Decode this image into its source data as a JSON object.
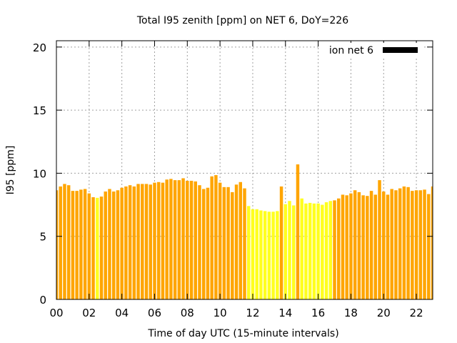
{
  "chart_data": {
    "type": "bar",
    "title": "Total I95 zenith [ppm] on NET 6, DoY=226",
    "xlabel": "Time of day UTC (15-minute intervals)",
    "ylabel": "I95 [ppm]",
    "xlim": [
      0,
      23
    ],
    "ylim": [
      0,
      20.5
    ],
    "x_ticks": [
      "00",
      "02",
      "04",
      "06",
      "08",
      "10",
      "12",
      "14",
      "16",
      "18",
      "20",
      "22"
    ],
    "y_ticks": [
      "0",
      "5",
      "10",
      "15",
      "20"
    ],
    "grid": true,
    "legend": {
      "label": "ion net 6",
      "color": "#000000",
      "position": "top-right"
    },
    "colors": {
      "orange": "#FFA500",
      "yellow": "#FFFF1F"
    },
    "interval_hours": 0.25,
    "values": [
      8.65,
      8.95,
      9.15,
      9.05,
      8.6,
      8.6,
      8.7,
      8.75,
      8.4,
      8.1,
      8.05,
      8.15,
      8.55,
      8.75,
      8.55,
      8.65,
      8.85,
      8.95,
      9.05,
      8.95,
      9.15,
      9.15,
      9.15,
      9.1,
      9.25,
      9.3,
      9.25,
      9.5,
      9.55,
      9.45,
      9.45,
      9.6,
      9.4,
      9.4,
      9.35,
      9.05,
      8.75,
      8.85,
      9.75,
      9.85,
      9.25,
      8.9,
      8.9,
      8.5,
      9.1,
      9.3,
      8.8,
      7.4,
      7.15,
      7.15,
      7.05,
      7.0,
      6.95,
      6.95,
      7.0,
      8.95,
      7.55,
      7.8,
      7.45,
      10.7,
      8.0,
      7.6,
      7.65,
      7.6,
      7.6,
      7.5,
      7.7,
      7.8,
      7.85,
      8.0,
      8.3,
      8.25,
      8.4,
      8.65,
      8.5,
      8.25,
      8.2,
      8.6,
      8.3,
      9.45,
      8.55,
      8.3,
      8.75,
      8.65,
      8.8,
      8.95,
      8.9,
      8.6,
      8.65,
      8.65,
      8.7,
      8.35,
      8.95
    ],
    "bar_colors": [
      "orange",
      "orange",
      "orange",
      "orange",
      "orange",
      "orange",
      "orange",
      "orange",
      "orange",
      "orange",
      "yellow",
      "orange",
      "orange",
      "orange",
      "orange",
      "orange",
      "orange",
      "orange",
      "orange",
      "orange",
      "orange",
      "orange",
      "orange",
      "orange",
      "orange",
      "orange",
      "orange",
      "orange",
      "orange",
      "orange",
      "orange",
      "orange",
      "orange",
      "orange",
      "orange",
      "orange",
      "orange",
      "orange",
      "orange",
      "orange",
      "orange",
      "orange",
      "orange",
      "orange",
      "orange",
      "orange",
      "orange",
      "yellow",
      "yellow",
      "yellow",
      "yellow",
      "yellow",
      "yellow",
      "yellow",
      "yellow",
      "orange",
      "yellow",
      "yellow",
      "yellow",
      "orange",
      "yellow",
      "yellow",
      "yellow",
      "yellow",
      "yellow",
      "yellow",
      "yellow",
      "yellow",
      "orange",
      "orange",
      "orange",
      "orange",
      "orange",
      "orange",
      "orange",
      "orange",
      "orange",
      "orange",
      "orange",
      "orange",
      "orange",
      "orange",
      "orange",
      "orange",
      "orange",
      "orange",
      "orange",
      "orange",
      "orange",
      "orange",
      "orange",
      "orange",
      "orange"
    ]
  }
}
